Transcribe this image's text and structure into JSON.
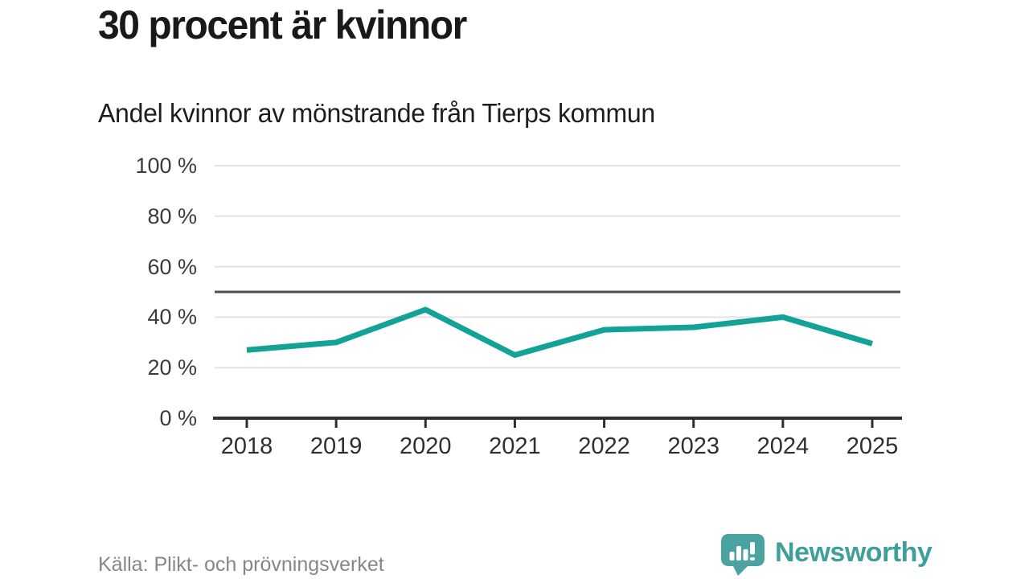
{
  "header": {
    "title": "30 procent är kvinnor",
    "subtitle": "Andel kvinnor av mönstrande från Tierps kommun"
  },
  "chart_data": {
    "type": "line",
    "title": "30 procent är kvinnor",
    "subtitle": "Andel kvinnor av mönstrande från Tierps kommun",
    "categories": [
      "2018",
      "2019",
      "2020",
      "2021",
      "2022",
      "2023",
      "2024",
      "2025"
    ],
    "values": [
      27,
      30,
      43,
      25,
      35,
      36,
      40,
      29.5
    ],
    "xlabel": "",
    "ylabel": "",
    "ylim": [
      0,
      100
    ],
    "y_ticks": [
      0,
      20,
      40,
      60,
      80,
      100
    ],
    "y_tick_labels": [
      "0 %",
      "20 %",
      "40 %",
      "60 %",
      "80 %",
      "100 %"
    ],
    "reference_line": 50,
    "grid": "horizontal-only",
    "legend": "none",
    "colors": {
      "line": "#12A296",
      "reference_line": "#4E4E54",
      "gridline": "#E3E3E3",
      "axis": "#2F2F2F"
    }
  },
  "footer": {
    "source": "Källa: Plikt- och prövningsverket",
    "brand": "Newsworthy",
    "brand_text_color": "#3F9F9A",
    "brand_icon_color": "#4AA3A0"
  }
}
